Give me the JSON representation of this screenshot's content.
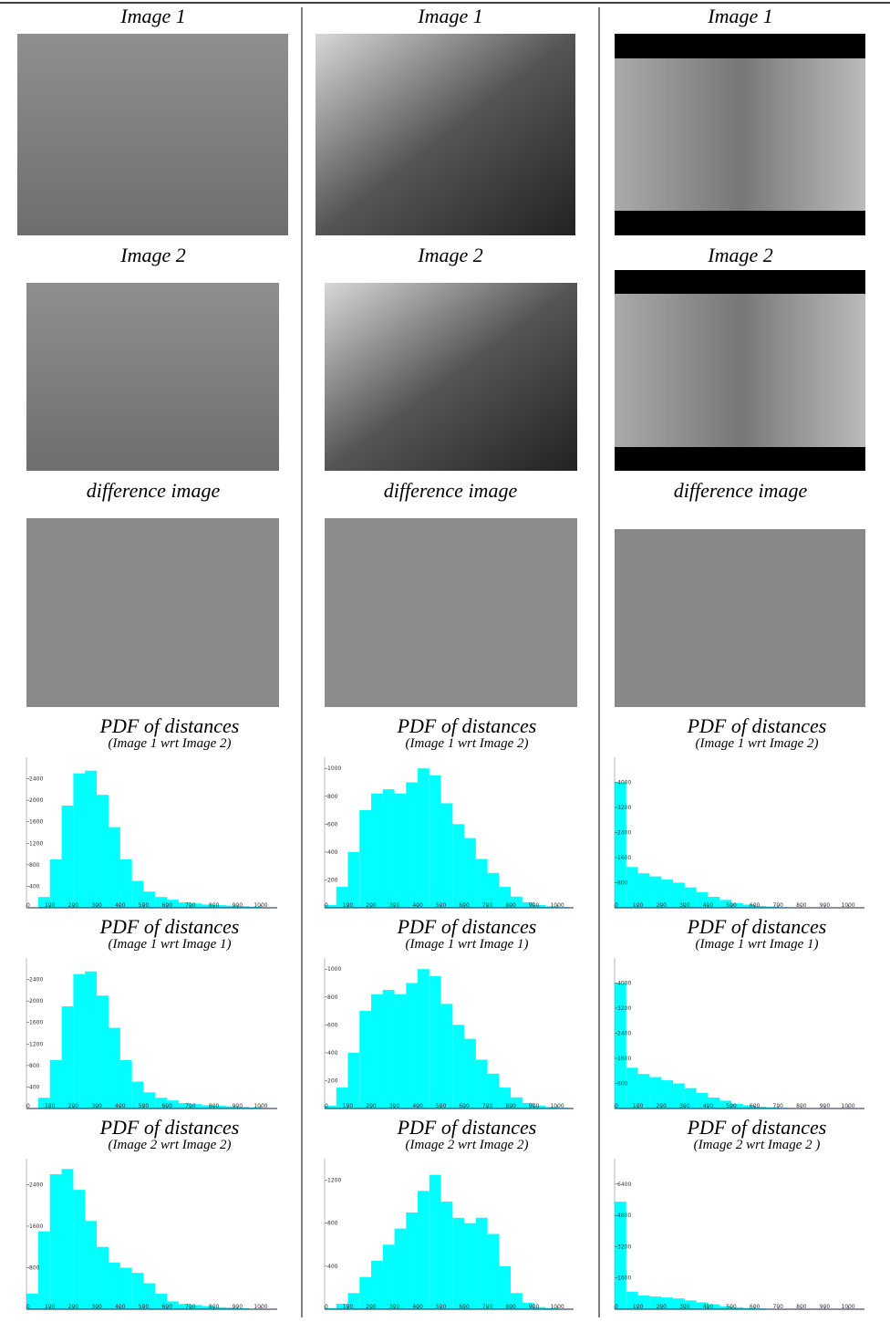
{
  "panels": [
    {
      "image1": "Image 1",
      "image2": "Image 2",
      "difference": "difference image"
    },
    {
      "image1": "Image 1",
      "image2": "Image 2",
      "difference": "difference image"
    },
    {
      "image1": "Image 1",
      "image2": "Image 2",
      "difference": "difference image"
    }
  ],
  "chart_data": [
    {
      "type": "histogram",
      "title": "PDF of distances",
      "subtitle": "(Image 1 wrt Image 2)",
      "color": "#00ffff",
      "bins": [
        0,
        50,
        100,
        150,
        200,
        250,
        300,
        350,
        400,
        450,
        500,
        550,
        600,
        650,
        700,
        750,
        800,
        850,
        900,
        950,
        1000,
        1050
      ],
      "values": [
        0,
        200,
        900,
        1900,
        2500,
        2550,
        2100,
        1500,
        900,
        500,
        300,
        200,
        150,
        100,
        80,
        60,
        50,
        40,
        30,
        20,
        10
      ],
      "xlim": [
        0,
        1070
      ],
      "ylim": [
        0,
        2800
      ],
      "xticks": [
        0,
        100,
        200,
        300,
        400,
        500,
        600,
        700,
        800,
        900,
        1000
      ],
      "yticks": [
        400,
        800,
        1200,
        1600,
        2000,
        2400
      ]
    },
    {
      "type": "histogram",
      "title": "PDF of distances",
      "subtitle": "(Image 1 wrt Image 2)",
      "color": "#00ffff",
      "bins": [
        0,
        50,
        100,
        150,
        200,
        250,
        300,
        350,
        400,
        450,
        500,
        550,
        600,
        650,
        700,
        750,
        800,
        850,
        900,
        950,
        1000,
        1050
      ],
      "values": [
        20,
        150,
        400,
        700,
        820,
        850,
        820,
        900,
        1000,
        950,
        750,
        600,
        500,
        350,
        250,
        150,
        80,
        40,
        20,
        10,
        5
      ],
      "xlim": [
        0,
        1070
      ],
      "ylim": [
        0,
        1080
      ],
      "xticks": [
        0,
        100,
        200,
        300,
        400,
        500,
        600,
        700,
        800,
        900,
        1000
      ],
      "yticks": [
        200,
        400,
        600,
        800,
        1000
      ]
    },
    {
      "type": "histogram",
      "title": "PDF of distances",
      "subtitle": "(Image 1 wrt Image 2)",
      "color": "#00ffff",
      "bins": [
        0,
        50,
        100,
        150,
        200,
        250,
        300,
        350,
        400,
        450,
        500,
        550,
        600,
        650,
        700,
        750,
        800,
        850,
        900,
        950,
        1000,
        1050
      ],
      "values": [
        4000,
        1300,
        1100,
        1000,
        900,
        800,
        650,
        500,
        350,
        250,
        150,
        100,
        60,
        40,
        20,
        10,
        5,
        5,
        3,
        2,
        1
      ],
      "xlim": [
        0,
        1070
      ],
      "ylim": [
        0,
        4800
      ],
      "xticks": [
        0,
        100,
        200,
        300,
        400,
        500,
        600,
        700,
        800,
        900,
        1000
      ],
      "yticks": [
        800,
        1600,
        2400,
        3200,
        4000
      ]
    },
    {
      "type": "histogram",
      "title": "PDF of distances",
      "subtitle": "(Image 1 wrt Image 1)",
      "color": "#00ffff",
      "bins": [
        0,
        50,
        100,
        150,
        200,
        250,
        300,
        350,
        400,
        450,
        500,
        550,
        600,
        650,
        700,
        750,
        800,
        850,
        900,
        950,
        1000,
        1050
      ],
      "values": [
        0,
        200,
        900,
        1900,
        2500,
        2550,
        2100,
        1500,
        900,
        500,
        300,
        200,
        150,
        100,
        80,
        60,
        50,
        40,
        30,
        20,
        10
      ],
      "xlim": [
        0,
        1070
      ],
      "ylim": [
        0,
        2800
      ],
      "xticks": [
        0,
        100,
        200,
        300,
        400,
        500,
        600,
        700,
        800,
        900,
        1000
      ],
      "yticks": [
        400,
        800,
        1200,
        1600,
        2000,
        2400
      ]
    },
    {
      "type": "histogram",
      "title": "PDF of distances",
      "subtitle": "(Image 1 wrt Image 1)",
      "color": "#00ffff",
      "bins": [
        0,
        50,
        100,
        150,
        200,
        250,
        300,
        350,
        400,
        450,
        500,
        550,
        600,
        650,
        700,
        750,
        800,
        850,
        900,
        950,
        1000,
        1050
      ],
      "values": [
        20,
        150,
        400,
        700,
        820,
        850,
        820,
        900,
        1000,
        950,
        750,
        600,
        500,
        350,
        250,
        150,
        80,
        40,
        20,
        10,
        5
      ],
      "xlim": [
        0,
        1070
      ],
      "ylim": [
        0,
        1080
      ],
      "xticks": [
        0,
        100,
        200,
        300,
        400,
        500,
        600,
        700,
        800,
        900,
        1000
      ],
      "yticks": [
        200,
        400,
        600,
        800,
        1000
      ]
    },
    {
      "type": "histogram",
      "title": "PDF of distances",
      "subtitle": "(Image 1 wrt Image 1)",
      "color": "#00ffff",
      "bins": [
        0,
        50,
        100,
        150,
        200,
        250,
        300,
        350,
        400,
        450,
        500,
        550,
        600,
        650,
        700,
        750,
        800,
        850,
        900,
        950,
        1000,
        1050
      ],
      "values": [
        4000,
        1300,
        1100,
        1000,
        900,
        800,
        650,
        500,
        350,
        250,
        150,
        100,
        60,
        40,
        20,
        10,
        5,
        5,
        3,
        2,
        1
      ],
      "xlim": [
        0,
        1070
      ],
      "ylim": [
        0,
        4800
      ],
      "xticks": [
        0,
        100,
        200,
        300,
        400,
        500,
        600,
        700,
        800,
        900,
        1000
      ],
      "yticks": [
        800,
        1600,
        2400,
        3200,
        4000
      ]
    },
    {
      "type": "histogram",
      "title": "PDF of distances",
      "subtitle": "(Image 2 wrt Image 2)",
      "color": "#00ffff",
      "bins": [
        0,
        50,
        100,
        150,
        200,
        250,
        300,
        350,
        400,
        450,
        500,
        550,
        600,
        650,
        700,
        750,
        800,
        850,
        900,
        950,
        1000,
        1050
      ],
      "values": [
        300,
        1500,
        2600,
        2700,
        2300,
        1700,
        1200,
        900,
        800,
        700,
        500,
        300,
        150,
        100,
        80,
        60,
        40,
        30,
        20,
        10,
        5
      ],
      "xlim": [
        0,
        1070
      ],
      "ylim": [
        0,
        2900
      ],
      "xticks": [
        0,
        100,
        200,
        300,
        400,
        500,
        600,
        700,
        800,
        900,
        1000
      ],
      "yticks": [
        800,
        1600,
        2400
      ]
    },
    {
      "type": "histogram",
      "title": "PDF of distances",
      "subtitle": "(Image 2 wrt Image 2)",
      "color": "#00ffff",
      "bins": [
        0,
        50,
        100,
        150,
        200,
        250,
        300,
        350,
        400,
        450,
        500,
        550,
        600,
        650,
        700,
        750,
        800,
        850,
        900,
        950,
        1000,
        1050
      ],
      "values": [
        10,
        50,
        150,
        300,
        450,
        600,
        750,
        900,
        1100,
        1250,
        1000,
        850,
        800,
        850,
        700,
        400,
        150,
        60,
        20,
        10,
        5
      ],
      "xlim": [
        0,
        1070
      ],
      "ylim": [
        0,
        1400
      ],
      "xticks": [
        0,
        100,
        200,
        300,
        400,
        500,
        600,
        700,
        800,
        900,
        1000
      ],
      "yticks": [
        400,
        800,
        1200
      ]
    },
    {
      "type": "histogram",
      "title": "PDF of distances",
      "subtitle": "(Image 2 wrt Image 2 )",
      "color": "#00ffff",
      "bins": [
        0,
        50,
        100,
        150,
        200,
        250,
        300,
        350,
        400,
        450,
        500,
        550,
        600,
        650,
        700,
        750,
        800,
        850,
        900,
        950,
        1000,
        1050
      ],
      "values": [
        5500,
        900,
        700,
        650,
        600,
        550,
        450,
        350,
        250,
        150,
        100,
        60,
        40,
        20,
        10,
        5,
        3,
        2,
        1,
        1,
        0
      ],
      "xlim": [
        0,
        1070
      ],
      "ylim": [
        0,
        7700
      ],
      "xticks": [
        0,
        100,
        200,
        300,
        400,
        500,
        600,
        700,
        800,
        900,
        1000
      ],
      "yticks": [
        1600,
        3200,
        4800,
        6400
      ]
    }
  ]
}
